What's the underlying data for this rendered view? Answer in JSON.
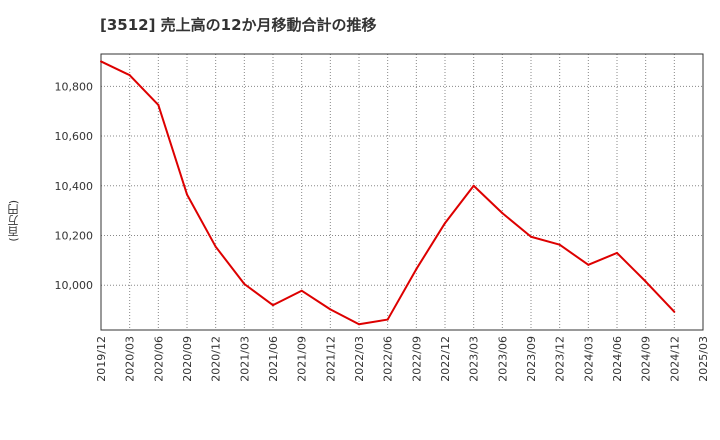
{
  "chart_data": {
    "type": "line",
    "title": "[3512]  売上高の12か月移動合計の推移",
    "ylabel": "(百万円)",
    "xlabel": "",
    "ylim": [
      9820,
      10930
    ],
    "y_ticks": [
      10000,
      10200,
      10400,
      10600,
      10800
    ],
    "y_tick_labels": [
      "10,000",
      "10,200",
      "10,400",
      "10,600",
      "10,800"
    ],
    "x_tick_labels": [
      "2019/12",
      "2020/03",
      "2020/06",
      "2020/09",
      "2020/12",
      "2021/03",
      "2021/06",
      "2021/09",
      "2021/12",
      "2022/03",
      "2022/06",
      "2022/09",
      "2022/12",
      "2023/03",
      "2023/06",
      "2023/09",
      "2023/12",
      "2024/03",
      "2024/06",
      "2024/09",
      "2024/12",
      "2025/03"
    ],
    "grid": true,
    "series": [
      {
        "name": "売上高の12か月移動合計",
        "color": "#dd0000",
        "x": [
          "2019/12",
          "2020/03",
          "2020/06",
          "2020/09",
          "2020/12",
          "2021/03",
          "2021/06",
          "2021/09",
          "2021/12",
          "2022/03",
          "2022/06",
          "2022/09",
          "2022/12",
          "2023/03",
          "2023/06",
          "2023/09",
          "2023/12",
          "2024/03",
          "2024/06",
          "2024/09",
          "2024/12"
        ],
        "values": [
          10900,
          10845,
          10725,
          10365,
          10155,
          10005,
          9920,
          9978,
          9903,
          9843,
          9862,
          10065,
          10250,
          10400,
          10290,
          10195,
          10163,
          10082,
          10130,
          10015,
          9893
        ]
      }
    ]
  }
}
